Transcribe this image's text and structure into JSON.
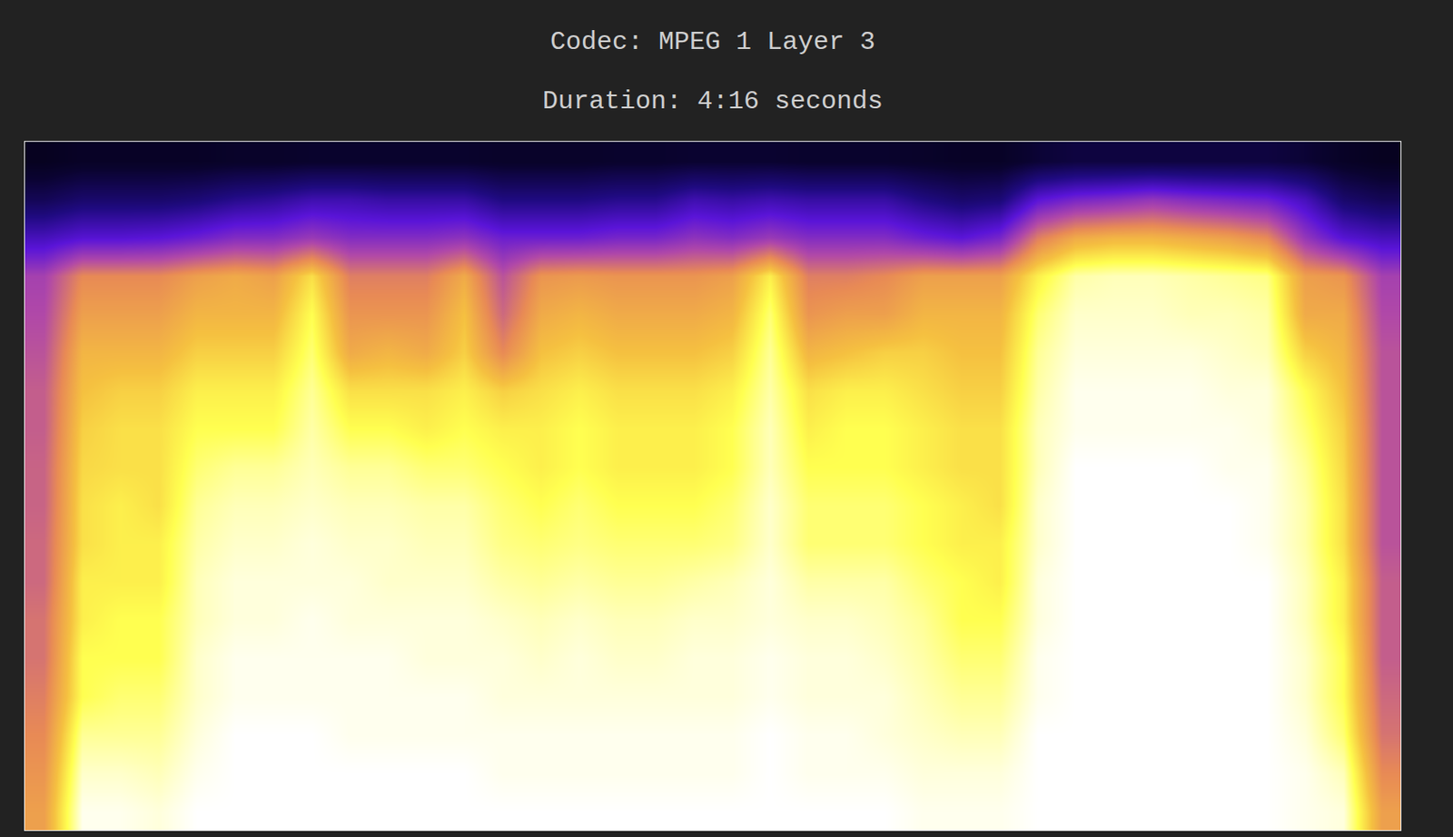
{
  "chart_data": {
    "type": "heatmap",
    "title": "Codec: MPEG 1 Layer 3",
    "subtitle": "Duration: 4:16 seconds",
    "tick_labels": false,
    "grid": false,
    "zlim": [
      0,
      100
    ],
    "cells": [
      [
        10,
        12,
        12,
        12,
        12,
        13,
        13,
        14,
        14,
        14,
        14,
        14,
        13,
        13,
        13,
        14,
        14,
        15,
        15,
        15,
        14,
        14,
        14,
        13,
        12,
        12,
        16,
        18,
        18,
        18,
        18,
        18,
        18,
        16,
        12,
        10
      ],
      [
        22,
        26,
        26,
        26,
        28,
        32,
        34,
        38,
        38,
        36,
        36,
        36,
        30,
        30,
        30,
        32,
        32,
        38,
        36,
        38,
        36,
        36,
        36,
        30,
        26,
        28,
        45,
        50,
        52,
        55,
        52,
        50,
        48,
        40,
        26,
        22
      ],
      [
        40,
        44,
        44,
        45,
        48,
        52,
        52,
        56,
        52,
        52,
        52,
        54,
        48,
        48,
        48,
        50,
        50,
        54,
        52,
        56,
        52,
        52,
        52,
        48,
        45,
        50,
        70,
        78,
        80,
        80,
        78,
        76,
        72,
        55,
        44,
        40
      ],
      [
        58,
        72,
        72,
        72,
        76,
        78,
        76,
        86,
        70,
        70,
        70,
        78,
        62,
        74,
        75,
        74,
        74,
        74,
        76,
        88,
        70,
        70,
        72,
        76,
        76,
        76,
        88,
        95,
        96,
        96,
        95,
        94,
        93,
        76,
        74,
        58
      ],
      [
        60,
        76,
        76,
        76,
        80,
        80,
        80,
        90,
        74,
        74,
        74,
        82,
        66,
        78,
        80,
        78,
        78,
        78,
        80,
        92,
        74,
        76,
        76,
        80,
        80,
        80,
        92,
        97,
        97,
        97,
        96,
        96,
        95,
        78,
        78,
        60
      ],
      [
        62,
        80,
        80,
        80,
        84,
        84,
        84,
        92,
        78,
        80,
        78,
        84,
        72,
        82,
        84,
        82,
        82,
        82,
        84,
        94,
        80,
        82,
        84,
        84,
        82,
        82,
        94,
        98,
        98,
        98,
        98,
        97,
        96,
        84,
        80,
        62
      ],
      [
        64,
        82,
        84,
        84,
        88,
        88,
        88,
        94,
        86,
        86,
        86,
        88,
        84,
        86,
        88,
        86,
        86,
        86,
        88,
        95,
        86,
        88,
        88,
        86,
        84,
        84,
        95,
        99,
        99,
        99,
        99,
        98,
        98,
        90,
        82,
        62
      ],
      [
        64,
        84,
        86,
        86,
        90,
        90,
        90,
        95,
        90,
        90,
        88,
        90,
        88,
        88,
        90,
        88,
        88,
        88,
        90,
        96,
        88,
        90,
        90,
        88,
        86,
        86,
        96,
        99,
        99,
        99,
        99,
        99,
        98,
        92,
        84,
        62
      ],
      [
        65,
        85,
        86,
        86,
        92,
        94,
        94,
        96,
        94,
        94,
        92,
        92,
        90,
        88,
        90,
        88,
        88,
        88,
        90,
        96,
        90,
        90,
        90,
        88,
        86,
        86,
        96,
        100,
        100,
        100,
        100,
        99,
        99,
        94,
        85,
        62
      ],
      [
        65,
        86,
        88,
        86,
        94,
        96,
        96,
        97,
        96,
        96,
        95,
        95,
        92,
        90,
        92,
        90,
        90,
        90,
        92,
        97,
        92,
        92,
        92,
        90,
        88,
        86,
        97,
        100,
        100,
        100,
        100,
        100,
        99,
        95,
        86,
        62
      ],
      [
        66,
        86,
        88,
        88,
        95,
        97,
        97,
        98,
        97,
        97,
        96,
        96,
        93,
        92,
        93,
        92,
        92,
        92,
        93,
        97,
        92,
        92,
        92,
        90,
        88,
        88,
        97,
        100,
        100,
        100,
        100,
        100,
        99,
        95,
        86,
        62
      ],
      [
        66,
        88,
        88,
        88,
        96,
        98,
        98,
        98,
        98,
        97,
        97,
        97,
        95,
        94,
        95,
        94,
        94,
        95,
        96,
        98,
        95,
        95,
        95,
        92,
        90,
        88,
        98,
        100,
        100,
        100,
        100,
        100,
        100,
        96,
        88,
        64
      ],
      [
        68,
        88,
        90,
        90,
        96,
        98,
        98,
        99,
        98,
        98,
        98,
        98,
        97,
        96,
        97,
        96,
        96,
        97,
        97,
        98,
        97,
        97,
        96,
        94,
        90,
        90,
        98,
        100,
        100,
        100,
        100,
        100,
        100,
        96,
        88,
        64
      ],
      [
        68,
        90,
        90,
        90,
        97,
        99,
        99,
        99,
        99,
        99,
        98,
        98,
        98,
        97,
        98,
        97,
        97,
        98,
        98,
        99,
        98,
        98,
        97,
        95,
        92,
        92,
        99,
        100,
        100,
        100,
        100,
        100,
        100,
        97,
        90,
        64
      ],
      [
        70,
        90,
        92,
        92,
        97,
        99,
        99,
        99,
        99,
        99,
        99,
        99,
        98,
        98,
        98,
        98,
        98,
        98,
        98,
        99,
        98,
        98,
        98,
        96,
        94,
        94,
        99,
        100,
        100,
        100,
        100,
        100,
        100,
        97,
        90,
        66
      ],
      [
        72,
        94,
        94,
        94,
        98,
        100,
        100,
        100,
        99,
        99,
        99,
        99,
        99,
        99,
        99,
        99,
        99,
        99,
        99,
        100,
        99,
        99,
        98,
        97,
        96,
        96,
        100,
        100,
        100,
        100,
        100,
        100,
        100,
        98,
        92,
        68
      ],
      [
        74,
        97,
        97,
        96,
        99,
        100,
        100,
        100,
        100,
        100,
        100,
        100,
        99,
        99,
        99,
        99,
        99,
        99,
        99,
        100,
        99,
        99,
        99,
        98,
        98,
        98,
        100,
        100,
        100,
        100,
        100,
        100,
        100,
        99,
        96,
        72
      ],
      [
        76,
        99,
        99,
        98,
        100,
        100,
        100,
        100,
        100,
        100,
        100,
        100,
        100,
        100,
        100,
        100,
        100,
        100,
        100,
        100,
        100,
        100,
        100,
        99,
        99,
        99,
        100,
        100,
        100,
        100,
        100,
        100,
        100,
        99,
        98,
        76
      ]
    ]
  }
}
